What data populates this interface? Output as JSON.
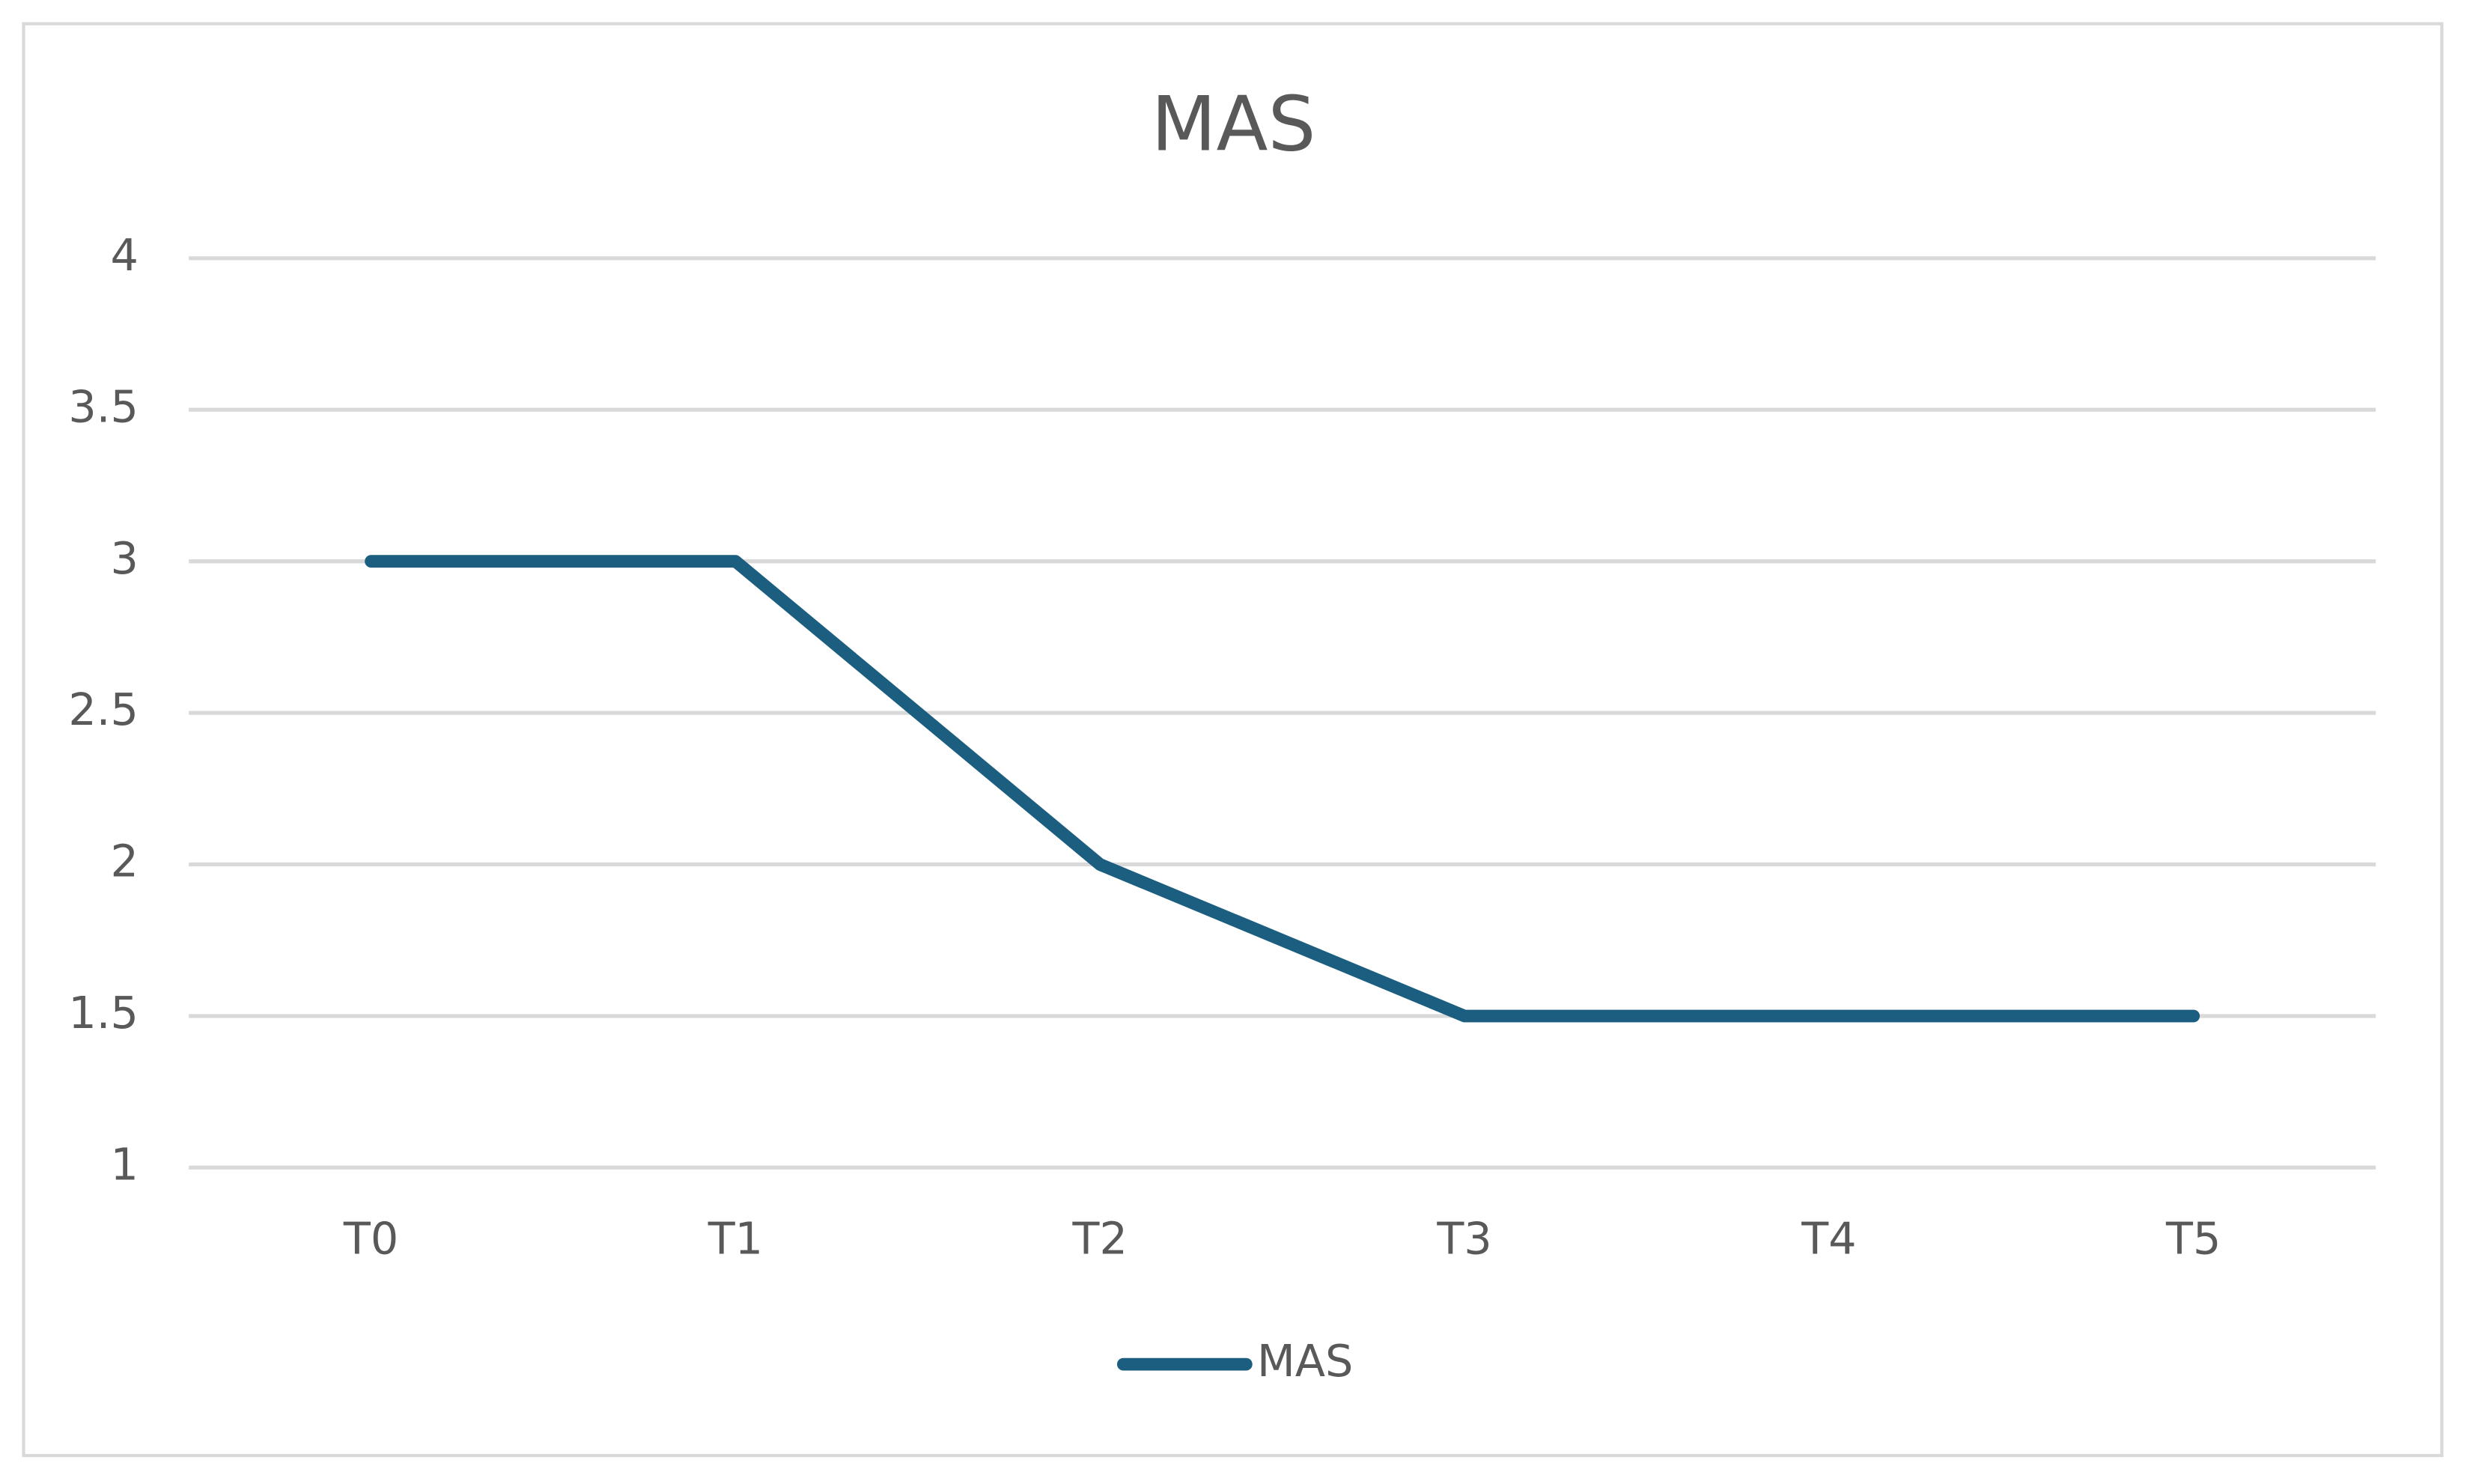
{
  "chart_data": {
    "type": "line",
    "title": "MAS",
    "categories": [
      "T0",
      "T1",
      "T2",
      "T3",
      "T4",
      "T5"
    ],
    "series": [
      {
        "name": "MAS",
        "color": "#1b5e7f",
        "values": [
          3,
          3,
          2,
          1.5,
          1.5,
          1.5
        ]
      }
    ],
    "ylim": [
      1,
      4
    ],
    "yticks": [
      1,
      1.5,
      2,
      2.5,
      3,
      3.5,
      4
    ],
    "grid": true,
    "legend": "bottom"
  }
}
